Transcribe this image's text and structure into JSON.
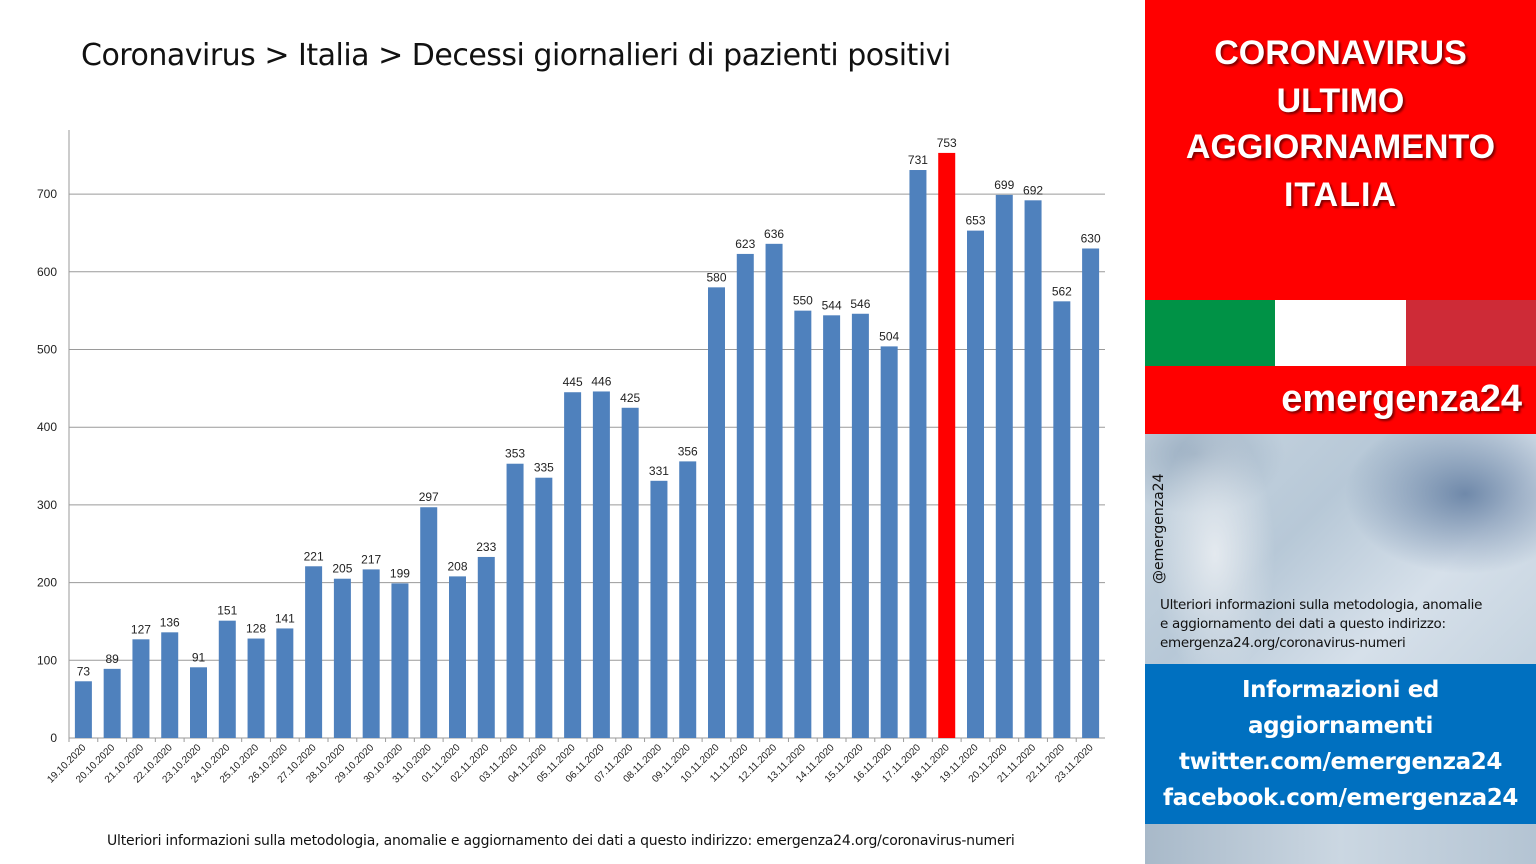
{
  "title": "Coronavirus > Italia > Decessi giornalieri di pazienti positivi",
  "footnote": "Ulteriori informazioni sulla metodologia, anomalie e aggiornamento dei dati a questo indirizzo: emergenza24.org/coronavirus-numeri",
  "sidebar": {
    "banner_lines": [
      "CORONAVIRUS",
      "ULTIMO",
      "AGGIORNAMENTO",
      "ITALIA"
    ],
    "brand": "emergenza24",
    "handle": "@emergenza24",
    "info_lines": [
      "Ulteriori informazioni sulla metodologia, anomalie",
      "e aggiornamento dei dati a questo indirizzo:",
      "emergenza24.org/coronavirus-numeri"
    ],
    "social_lines": [
      "Informazioni ed",
      "aggiornamenti",
      "twitter.com/emergenza24",
      "facebook.com/emergenza24"
    ]
  },
  "colors": {
    "bar": "#4f81bd",
    "highlight_bar": "#ff0000",
    "banner_red": "#ff0000",
    "flag_green": "#009246",
    "flag_white": "#ffffff",
    "flag_red": "#ce2b37",
    "social_blue": "#0070c0"
  },
  "chart_data": {
    "type": "bar",
    "title": "Coronavirus > Italia > Decessi giornalieri di pazienti positivi",
    "xlabel": "",
    "ylabel": "",
    "ylim": [
      0,
      753
    ],
    "yticks": [
      0,
      100,
      200,
      300,
      400,
      500,
      600,
      700
    ],
    "grid": true,
    "legend": "none",
    "highlight_index": 30,
    "categories": [
      "19.10.2020",
      "20.10.2020",
      "21.10.2020",
      "22.10.2020",
      "23.10.2020",
      "24.10.2020",
      "25.10.2020",
      "26.10.2020",
      "27.10.2020",
      "28.10.2020",
      "29.10.2020",
      "30.10.2020",
      "31.10.2020",
      "01.11.2020",
      "02.11.2020",
      "03.11.2020",
      "04.11.2020",
      "05.11.2020",
      "06.11.2020",
      "07.11.2020",
      "08.11.2020",
      "09.11.2020",
      "10.11.2020",
      "11.11.2020",
      "12.11.2020",
      "13.11.2020",
      "14.11.2020",
      "15.11.2020",
      "16.11.2020",
      "17.11.2020",
      "18.11.2020",
      "19.11.2020",
      "20.11.2020",
      "21.11.2020",
      "22.11.2020",
      "23.11.2020"
    ],
    "values": [
      73,
      89,
      127,
      136,
      91,
      151,
      128,
      141,
      221,
      205,
      217,
      199,
      297,
      208,
      233,
      353,
      335,
      445,
      446,
      425,
      331,
      356,
      580,
      623,
      636,
      550,
      544,
      546,
      504,
      731,
      753,
      653,
      699,
      692,
      562,
      630
    ]
  }
}
